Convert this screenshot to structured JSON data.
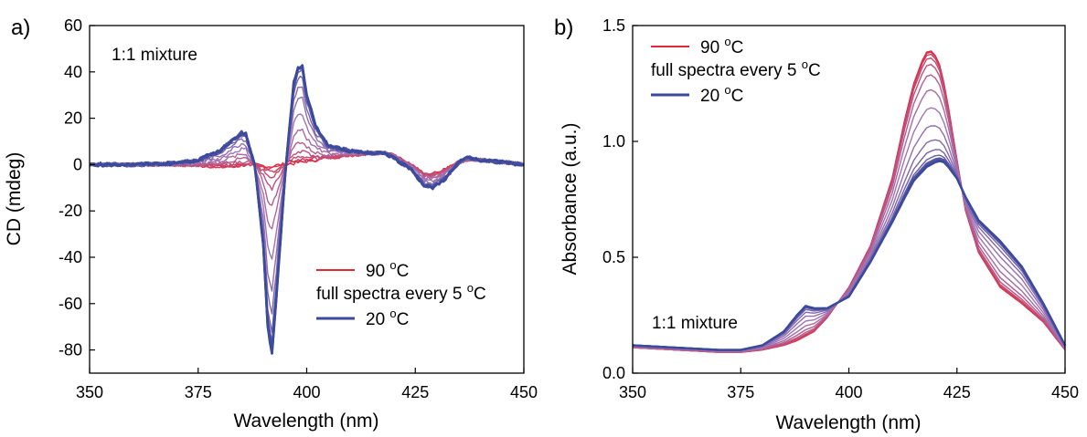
{
  "chart_data": [
    {
      "panel_label": "a)",
      "type": "line",
      "xlabel": "Wavelength (nm)",
      "ylabel": "CD (mdeg)",
      "xlim": [
        350,
        450
      ],
      "ylim": [
        -90,
        60
      ],
      "xticks": [
        350,
        375,
        400,
        425,
        450
      ],
      "yticks": [
        60,
        40,
        20,
        0,
        -20,
        -40,
        -60,
        -80
      ],
      "annotation": "1:1 mixture",
      "legend": {
        "position": "bottom-right",
        "entries": [
          {
            "label_main": "90 ",
            "label_sup": "o",
            "label_tail": "C",
            "color": "#e0283c"
          },
          {
            "label_main": "full spectra every 5 ",
            "label_sup": "o",
            "label_tail": "C",
            "color": null
          },
          {
            "label_main": "20 ",
            "label_sup": "o",
            "label_tail": "C",
            "color": "#3a4a9c"
          }
        ]
      },
      "series_count": 15,
      "color_start": "#e0283c",
      "color_mid": "#a074b4",
      "color_end": "#3a4a9c",
      "x": [
        350,
        360,
        370,
        375,
        380,
        383,
        385,
        386,
        388,
        390,
        391,
        392,
        393,
        395,
        397,
        398,
        399,
        400,
        402,
        405,
        410,
        415,
        418,
        420,
        424,
        427,
        429,
        432,
        435,
        437,
        440,
        445,
        450
      ],
      "series_profiles": {
        "high_temperature": [
          0,
          0,
          0,
          -0.5,
          -0.8,
          -0.8,
          -0.5,
          0,
          0,
          -0.5,
          -0.8,
          -0.8,
          -0.3,
          0.2,
          0.5,
          0.8,
          1,
          1.5,
          2,
          3,
          4,
          5,
          5,
          4,
          0,
          -4,
          -4,
          -2,
          1,
          2,
          2,
          1,
          0
        ],
        "low_temperature": [
          0,
          0,
          0.5,
          2,
          6,
          11,
          14,
          13,
          0,
          -35,
          -70,
          -82,
          -58,
          -5,
          35,
          42,
          43,
          30,
          17,
          8,
          6,
          5,
          5,
          3,
          -2,
          -9,
          -10,
          -6,
          1,
          3,
          2,
          1,
          0
        ]
      }
    },
    {
      "panel_label": "b)",
      "type": "line",
      "xlabel": "Wavelength (nm)",
      "ylabel": "Absorbance (a.u.)",
      "xlim": [
        350,
        450
      ],
      "ylim": [
        0,
        1.5
      ],
      "xticks": [
        350,
        375,
        400,
        425,
        450
      ],
      "yticks": [
        0.0,
        0.5,
        1.0,
        1.5
      ],
      "ytick_labels": [
        "0.0",
        "0.5",
        "1.0",
        "1.5"
      ],
      "annotation": "1:1 mixture",
      "legend": {
        "position": "top-left",
        "entries": [
          {
            "label_main": "90 ",
            "label_sup": "o",
            "label_tail": "C",
            "color": "#e0283c"
          },
          {
            "label_main": "full spectra every 5 ",
            "label_sup": "o",
            "label_tail": "C",
            "color": null
          },
          {
            "label_main": "20 ",
            "label_sup": "o",
            "label_tail": "C",
            "color": "#3a4a9c"
          }
        ]
      },
      "series_count": 15,
      "color_start": "#e0283c",
      "color_mid": "#a074b4",
      "color_end": "#3a4a9c",
      "x": [
        350,
        360,
        370,
        375,
        380,
        385,
        388,
        390,
        392,
        395,
        400,
        405,
        410,
        413,
        415,
        417,
        418,
        419,
        420,
        421,
        422,
        423,
        425,
        427,
        430,
        435,
        440,
        445,
        450
      ],
      "series_profiles": {
        "high_temperature": [
          0.11,
          0.1,
          0.09,
          0.09,
          0.1,
          0.12,
          0.14,
          0.16,
          0.18,
          0.24,
          0.37,
          0.55,
          0.84,
          1.1,
          1.25,
          1.35,
          1.385,
          1.39,
          1.37,
          1.33,
          1.25,
          1.15,
          0.92,
          0.7,
          0.52,
          0.37,
          0.3,
          0.22,
          0.1
        ],
        "low_temperature": [
          0.12,
          0.11,
          0.1,
          0.1,
          0.12,
          0.18,
          0.25,
          0.29,
          0.28,
          0.28,
          0.33,
          0.48,
          0.65,
          0.76,
          0.83,
          0.87,
          0.89,
          0.9,
          0.91,
          0.915,
          0.91,
          0.89,
          0.84,
          0.76,
          0.66,
          0.57,
          0.46,
          0.3,
          0.12
        ]
      }
    }
  ]
}
